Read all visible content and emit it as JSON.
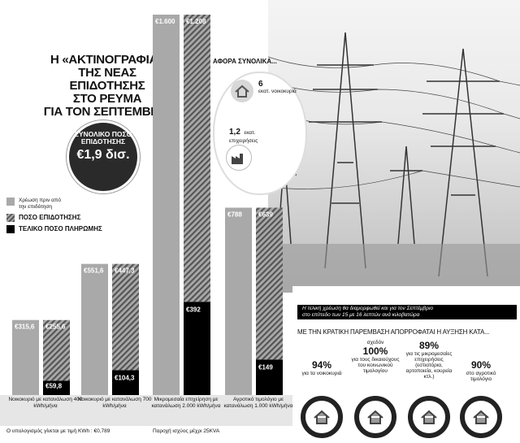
{
  "headline": [
    "Η «ΑΚΤΙΝΟΓΡΑΦΙΑ»",
    "ΤΗΣ ΝΕΑΣ ΕΠΙΔΟΤΗΣΗΣ",
    "ΣΤΟ ΡΕΥΜΑ",
    "ΓΙΑ ΤΟΝ ΣΕΠΤΕΜΒΡΙΟ"
  ],
  "total": {
    "label": "ΣΥΝΟΛΙΚΟ ΠΟΣΟ ΕΠΙΔΟΤΗΣΗΣ",
    "value": "€1,9 δισ."
  },
  "legend": {
    "grey": "Χρέωση πριν από την επιδότηση",
    "hatch": "ΠΟΣΟ ΕΠΙΔΟΤΗΣΗΣ",
    "black": "ΤΕΛΙΚΟ ΠΟΣΟ ΠΛΗΡΩΜΗΣ"
  },
  "affects": {
    "title": "ΑΦΟΡΑ ΣΥΝΟΛΙΚΑ...",
    "households_num": "6",
    "households_txt": "εκατ. νοικοκυριά",
    "business_num": "1,2",
    "business_unit": "εκατ.",
    "business_txt": "επιχειρήσεις"
  },
  "colors": {
    "grey": "#a9a9a9",
    "hatch_dark": "#555555",
    "black": "#000000"
  },
  "chart_data": {
    "type": "bar",
    "categories": [
      "Νοικοκυριό με κατανάλωση 400 kWh/μήνα",
      "Νοικοκυριό με κατανάλωση 700 kWh/μήνα",
      "Μικρομεσαία επιχείρηση με κατανάλωση 2.000 kWh/μήνα",
      "Αγροτικό τιμολόγιο με κατανάλωση 1.000 kWh/μήνα"
    ],
    "series": [
      {
        "name": "Χρέωση πριν από την επιδότηση",
        "values": [
          315.6,
          551.6,
          1600,
          788
        ],
        "labels": [
          "€315,6",
          "€551,6",
          "€1.600",
          "€788"
        ]
      },
      {
        "name": "ΠΟΣΟ ΕΠΙΔΟΤΗΣΗΣ",
        "values": [
          255.6,
          447.3,
          1208,
          639
        ],
        "labels": [
          "€255,6",
          "€447,3",
          "€1.208",
          "€639"
        ]
      },
      {
        "name": "ΤΕΛΙΚΟ ΠΟΣΟ ΠΛΗΡΩΜΗΣ",
        "values": [
          59.8,
          104.3,
          392,
          149
        ],
        "labels": [
          "€59,8",
          "€104,3",
          "€392",
          "€149"
        ]
      }
    ],
    "ylim": [
      0,
      1600
    ]
  },
  "footnote": "Ο υπολογισμός γίνεται με τιμή KWh : €0,789",
  "footnote2": "Παροχή ισχύος μέχρι 25KVA",
  "banner": [
    "Η τελική χρέωση θα διαμορφωθεί και για τον Σεπτέμβριο",
    "στο επίπεδο των 15 με 16 λεπτών ανά κιλοβατώρα"
  ],
  "subhead": "ΜΕ ΤΗΝ ΚΡΑΤΙΚΗ ΠΑΡΕΜΒΑΣΗ ΑΠΟΡΡΟΦΑΤΑΙ Η ΑΥΞΗΣΗ ΚΑΤΑ...",
  "absorb": [
    {
      "pre": "",
      "pct": "94%",
      "txt": "για τα νοικοκυριά",
      "icon": "house-icon"
    },
    {
      "pre": "σχεδόν",
      "pct": "100%",
      "txt": "για τους δικαιούχους του κοινωνικού τιμολογίου",
      "icon": "people-icon"
    },
    {
      "pre": "",
      "pct": "89%",
      "txt": "για τις μικρομεσαίες επιχειρήσεις (εστιατόρια, αρτοποιεία, κουρεία κτλ.)",
      "icon": "shop-icon"
    },
    {
      "pre": "",
      "pct": "90%",
      "txt": "στο αγροτικό τιμολόγιο",
      "icon": "tractor-icon"
    }
  ]
}
